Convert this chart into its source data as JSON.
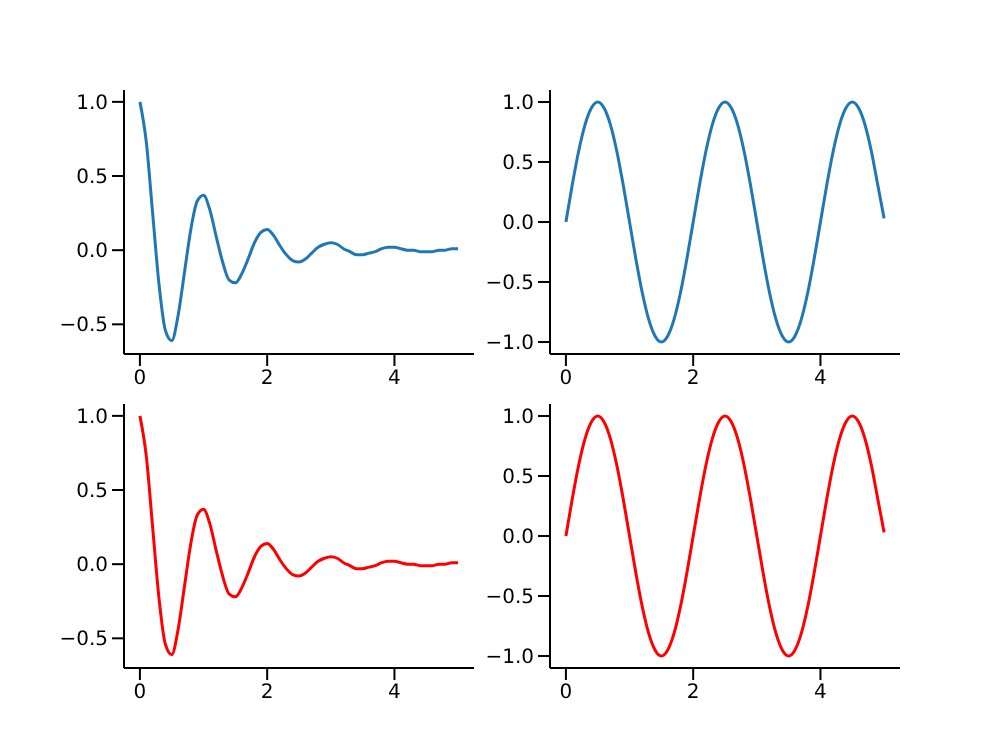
{
  "chart_data": [
    {
      "type": "line",
      "x": [
        0,
        0.1,
        0.2,
        0.3,
        0.4,
        0.5,
        0.6,
        0.7,
        0.8,
        0.9,
        1,
        1.1,
        1.2,
        1.3,
        1.4,
        1.5,
        1.6,
        1.7,
        1.8,
        1.9,
        2,
        2.1,
        2.2,
        2.3,
        2.4,
        2.5,
        2.6,
        2.7,
        2.8,
        2.9,
        3,
        3.1,
        3.2,
        3.3,
        3.4,
        3.5,
        3.6,
        3.7,
        3.8,
        3.9,
        4,
        4.1,
        4.2,
        4.3,
        4.4,
        4.5,
        4.6,
        4.7,
        4.8,
        4.9,
        5
      ],
      "series": [
        {
          "color": "#1f77b4",
          "values": [
            1.0,
            0.73,
            0.25,
            -0.23,
            -0.54,
            -0.61,
            -0.44,
            -0.15,
            0.14,
            0.33,
            0.37,
            0.27,
            0.09,
            -0.08,
            -0.2,
            -0.22,
            -0.16,
            -0.06,
            0.05,
            0.12,
            0.14,
            0.1,
            0.03,
            -0.03,
            -0.07,
            -0.08,
            -0.06,
            -0.02,
            0.02,
            0.04,
            0.05,
            0.04,
            0.01,
            -0.01,
            -0.03,
            -0.03,
            -0.02,
            -0.01,
            0.01,
            0.02,
            0.02,
            0.01,
            0.0,
            0.0,
            -0.01,
            -0.01,
            -0.01,
            0.0,
            0.0,
            0.01,
            0.01
          ]
        }
      ],
      "xlim": [
        -0.25,
        5.25
      ],
      "xticks": [
        0,
        2,
        4
      ],
      "ylim": [
        -0.7,
        1.08
      ],
      "yticks": [
        {
          "value": -0.5,
          "label": "−0.5"
        },
        {
          "value": 0,
          "label": "0.0"
        },
        {
          "value": 0.5,
          "label": "0.5"
        },
        {
          "value": 1,
          "label": "1.0"
        }
      ],
      "grid": false,
      "legend": false,
      "marker": "none",
      "line_style": "solid"
    },
    {
      "type": "line",
      "x": [
        0,
        0.1,
        0.2,
        0.3,
        0.4,
        0.5,
        0.6,
        0.7,
        0.8,
        0.9,
        1,
        1.1,
        1.2,
        1.3,
        1.4,
        1.5,
        1.6,
        1.7,
        1.8,
        1.9,
        2,
        2.1,
        2.2,
        2.3,
        2.4,
        2.5,
        2.6,
        2.7,
        2.8,
        2.9,
        3,
        3.1,
        3.2,
        3.3,
        3.4,
        3.5,
        3.6,
        3.7,
        3.8,
        3.9,
        4,
        4.1,
        4.2,
        4.3,
        4.4,
        4.5,
        4.6,
        4.7,
        4.8,
        4.9,
        5
      ],
      "series": [
        {
          "color": "#1f77b4",
          "values": [
            0,
            0.31,
            0.59,
            0.81,
            0.95,
            1,
            0.95,
            0.81,
            0.59,
            0.31,
            0,
            -0.31,
            -0.59,
            -0.81,
            -0.95,
            -1,
            -0.95,
            -0.81,
            -0.59,
            -0.31,
            0,
            0.31,
            0.59,
            0.81,
            0.95,
            1,
            0.95,
            0.81,
            0.59,
            0.31,
            0,
            -0.31,
            -0.59,
            -0.81,
            -0.95,
            -1,
            -0.95,
            -0.81,
            -0.59,
            -0.31,
            0,
            0.31,
            0.59,
            0.81,
            0.95,
            1,
            0.95,
            0.81,
            0.59,
            0.31,
            0.03
          ]
        }
      ],
      "xlim": [
        -0.25,
        5.25
      ],
      "xticks": [
        0,
        2,
        4
      ],
      "ylim": [
        -1.1,
        1.1
      ],
      "yticks": [
        {
          "value": -1,
          "label": "−1.0"
        },
        {
          "value": -0.5,
          "label": "−0.5"
        },
        {
          "value": 0,
          "label": "0.0"
        },
        {
          "value": 0.5,
          "label": "0.5"
        },
        {
          "value": 1,
          "label": "1.0"
        }
      ],
      "grid": false,
      "legend": false,
      "marker": "none",
      "line_style": "solid"
    },
    {
      "type": "line",
      "x": [
        0,
        0.1,
        0.2,
        0.3,
        0.4,
        0.5,
        0.6,
        0.7,
        0.8,
        0.9,
        1,
        1.1,
        1.2,
        1.3,
        1.4,
        1.5,
        1.6,
        1.7,
        1.8,
        1.9,
        2,
        2.1,
        2.2,
        2.3,
        2.4,
        2.5,
        2.6,
        2.7,
        2.8,
        2.9,
        3,
        3.1,
        3.2,
        3.3,
        3.4,
        3.5,
        3.6,
        3.7,
        3.8,
        3.9,
        4,
        4.1,
        4.2,
        4.3,
        4.4,
        4.5,
        4.6,
        4.7,
        4.8,
        4.9,
        5
      ],
      "series": [
        {
          "color": "#ff0000",
          "values": [
            1.0,
            0.73,
            0.25,
            -0.23,
            -0.54,
            -0.61,
            -0.44,
            -0.15,
            0.14,
            0.33,
            0.37,
            0.27,
            0.09,
            -0.08,
            -0.2,
            -0.22,
            -0.16,
            -0.06,
            0.05,
            0.12,
            0.14,
            0.1,
            0.03,
            -0.03,
            -0.07,
            -0.08,
            -0.06,
            -0.02,
            0.02,
            0.04,
            0.05,
            0.04,
            0.01,
            -0.01,
            -0.03,
            -0.03,
            -0.02,
            -0.01,
            0.01,
            0.02,
            0.02,
            0.01,
            0.0,
            0.0,
            -0.01,
            -0.01,
            -0.01,
            0.0,
            0.0,
            0.01,
            0.01
          ]
        }
      ],
      "xlim": [
        -0.25,
        5.25
      ],
      "xticks": [
        0,
        2,
        4
      ],
      "ylim": [
        -0.7,
        1.08
      ],
      "yticks": [
        {
          "value": -0.5,
          "label": "−0.5"
        },
        {
          "value": 0,
          "label": "0.0"
        },
        {
          "value": 0.5,
          "label": "0.5"
        },
        {
          "value": 1,
          "label": "1.0"
        }
      ],
      "grid": false,
      "legend": false,
      "marker": "none",
      "line_style": "solid"
    },
    {
      "type": "line",
      "x": [
        0,
        0.1,
        0.2,
        0.3,
        0.4,
        0.5,
        0.6,
        0.7,
        0.8,
        0.9,
        1,
        1.1,
        1.2,
        1.3,
        1.4,
        1.5,
        1.6,
        1.7,
        1.8,
        1.9,
        2,
        2.1,
        2.2,
        2.3,
        2.4,
        2.5,
        2.6,
        2.7,
        2.8,
        2.9,
        3,
        3.1,
        3.2,
        3.3,
        3.4,
        3.5,
        3.6,
        3.7,
        3.8,
        3.9,
        4,
        4.1,
        4.2,
        4.3,
        4.4,
        4.5,
        4.6,
        4.7,
        4.8,
        4.9,
        5
      ],
      "series": [
        {
          "color": "#ff0000",
          "values": [
            0,
            0.31,
            0.59,
            0.81,
            0.95,
            1,
            0.95,
            0.81,
            0.59,
            0.31,
            0,
            -0.31,
            -0.59,
            -0.81,
            -0.95,
            -1,
            -0.95,
            -0.81,
            -0.59,
            -0.31,
            0,
            0.31,
            0.59,
            0.81,
            0.95,
            1,
            0.95,
            0.81,
            0.59,
            0.31,
            0,
            -0.31,
            -0.59,
            -0.81,
            -0.95,
            -1,
            -0.95,
            -0.81,
            -0.59,
            -0.31,
            0,
            0.31,
            0.59,
            0.81,
            0.95,
            1,
            0.95,
            0.81,
            0.59,
            0.31,
            0.03
          ]
        }
      ],
      "xlim": [
        -0.25,
        5.25
      ],
      "xticks": [
        0,
        2,
        4
      ],
      "ylim": [
        -1.1,
        1.1
      ],
      "yticks": [
        {
          "value": -1,
          "label": "−1.0"
        },
        {
          "value": -0.5,
          "label": "−0.5"
        },
        {
          "value": 0,
          "label": "0.0"
        },
        {
          "value": 0.5,
          "label": "0.5"
        },
        {
          "value": 1,
          "label": "1.0"
        }
      ],
      "grid": false,
      "legend": false,
      "marker": "none",
      "line_style": "solid"
    }
  ]
}
